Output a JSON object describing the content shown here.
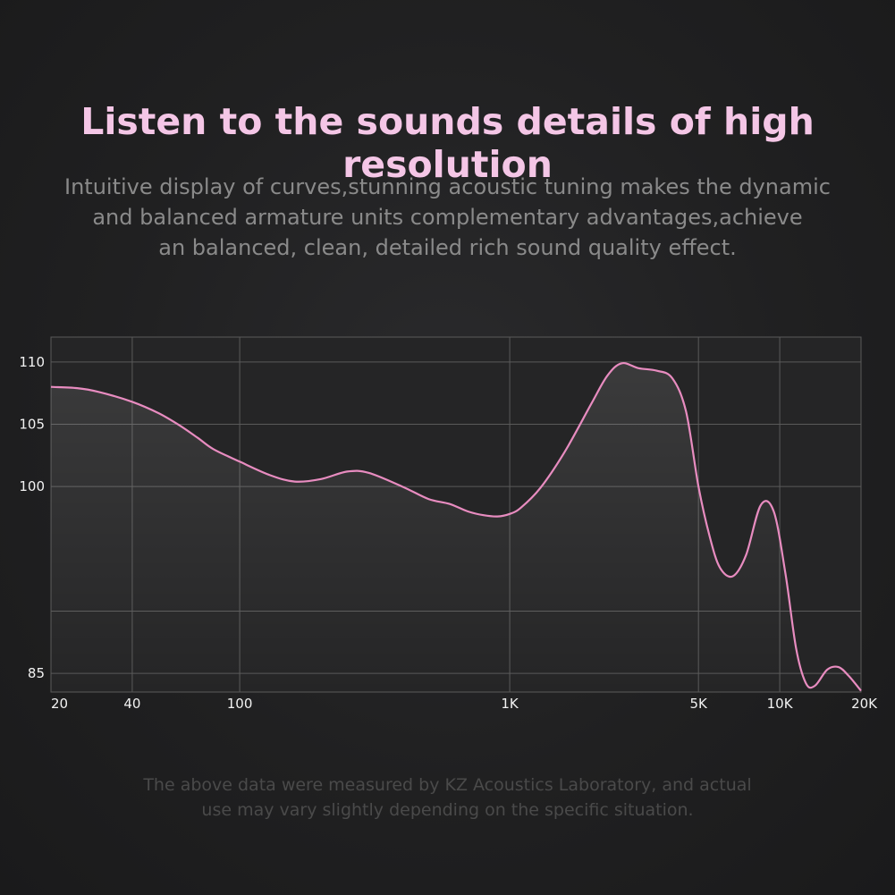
{
  "header": {
    "title": "Listen to the sounds details of high resolution",
    "subtitle_lines": [
      "Intuitive display of curves,stunning acoustic tuning makes the dynamic",
      "and balanced armature units complementary advantages,achieve",
      "an balanced, clean, detailed rich sound quality effect."
    ]
  },
  "footnote": {
    "lines": [
      "The above data were measured by KZ Acoustics Laboratory, and actual",
      "use may vary slightly depending on the specific situation."
    ]
  },
  "colors": {
    "curve": "#e88cc0",
    "title": "#f4c6e6",
    "grid": "#5a5a5a"
  },
  "chart_data": {
    "type": "line",
    "title": "",
    "xlabel": "",
    "ylabel": "",
    "x_scale": "log",
    "xlim": [
      20,
      20000
    ],
    "ylim": [
      83.5,
      112
    ],
    "grid": true,
    "legend": "none",
    "x_ticks": [
      {
        "value": 20,
        "label": "20"
      },
      {
        "value": 40,
        "label": "40"
      },
      {
        "value": 100,
        "label": "100"
      },
      {
        "value": 1000,
        "label": "1K"
      },
      {
        "value": 5000,
        "label": "5K"
      },
      {
        "value": 10000,
        "label": "10K"
      },
      {
        "value": 20000,
        "label": "20K"
      }
    ],
    "y_ticks": [
      {
        "value": 110,
        "label": "110"
      },
      {
        "value": 105,
        "label": "105"
      },
      {
        "value": 100,
        "label": "100"
      },
      {
        "value": 90,
        "label": ""
      },
      {
        "value": 85,
        "label": "85"
      }
    ],
    "series": [
      {
        "name": "",
        "x": [
          20,
          25,
          30,
          40,
          50,
          60,
          70,
          80,
          100,
          130,
          160,
          200,
          250,
          300,
          400,
          500,
          600,
          700,
          800,
          900,
          1000,
          1100,
          1300,
          1600,
          2000,
          2300,
          2600,
          3000,
          3500,
          4000,
          4500,
          5000,
          5500,
          6000,
          6700,
          7500,
          8500,
          9500,
          10500,
          11500,
          12500,
          13500,
          15000,
          16500,
          18000,
          20000
        ],
        "y": [
          108.0,
          107.9,
          107.6,
          106.8,
          105.9,
          104.9,
          103.9,
          103.0,
          102.0,
          100.9,
          100.4,
          100.6,
          101.2,
          101.1,
          100.0,
          99.0,
          98.6,
          98.0,
          97.7,
          97.6,
          97.8,
          98.3,
          99.9,
          102.8,
          106.6,
          108.9,
          109.9,
          109.5,
          109.3,
          108.7,
          106.0,
          100.0,
          96.0,
          93.5,
          92.8,
          94.5,
          98.5,
          98.0,
          93.0,
          87.0,
          84.2,
          84.0,
          85.3,
          85.5,
          84.8,
          83.6
        ]
      }
    ]
  }
}
